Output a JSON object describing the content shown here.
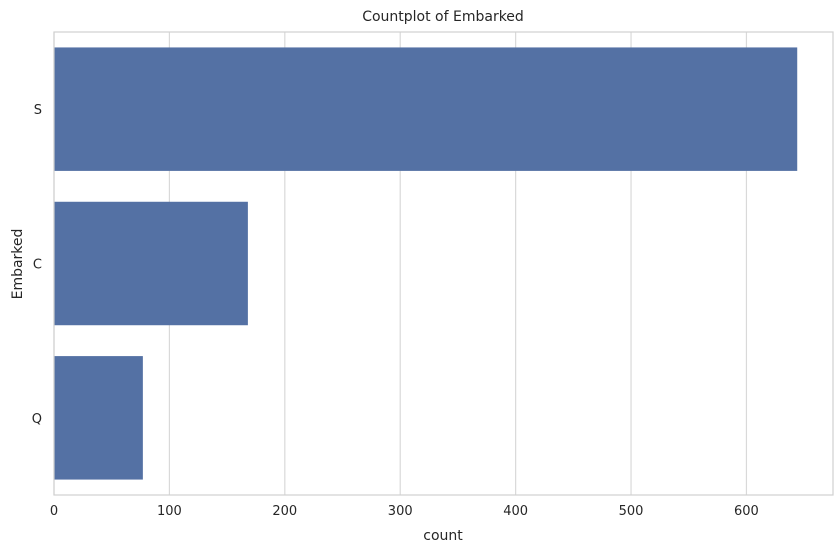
{
  "chart_data": {
    "type": "bar",
    "orientation": "horizontal",
    "title": "Countplot of Embarked",
    "xlabel": "count",
    "ylabel": "Embarked",
    "categories": [
      "S",
      "C",
      "Q"
    ],
    "values": [
      644,
      168,
      77
    ],
    "xlim": [
      0,
      675
    ],
    "xticks": [
      0,
      100,
      200,
      300,
      400,
      500,
      600
    ],
    "grid": true,
    "bar_color": "#5471a4"
  }
}
